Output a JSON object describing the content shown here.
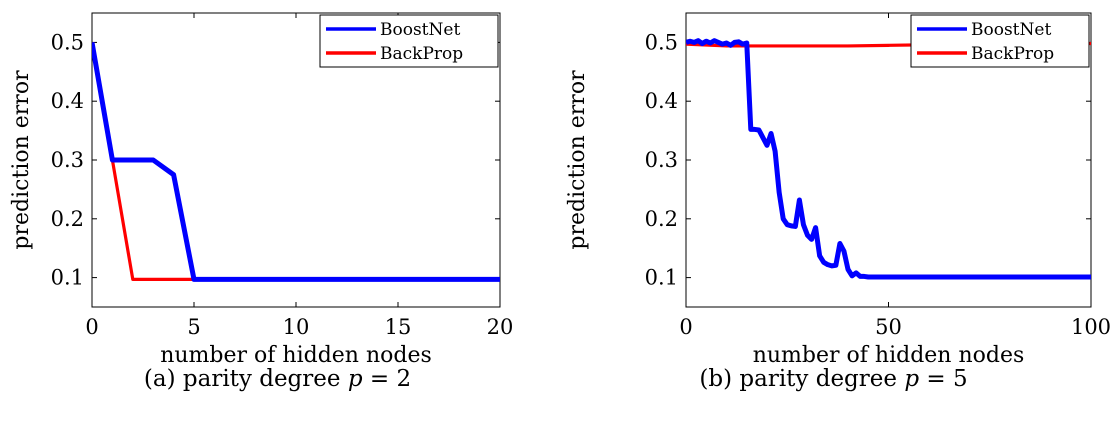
{
  "chart_data": [
    {
      "type": "line",
      "xlabel": "number of hidden nodes",
      "ylabel": "prediction error",
      "xlim": [
        0,
        20
      ],
      "ylim": [
        0.05,
        0.55
      ],
      "xticks": [
        0,
        5,
        10,
        15,
        20
      ],
      "yticks": [
        0.1,
        0.2,
        0.3,
        0.4,
        0.5
      ],
      "grid": false,
      "legend_position": "top-right",
      "series": [
        {
          "name": "BoostNet",
          "color": "#0000ff",
          "x": [
            0,
            1,
            2,
            3,
            4,
            5,
            6,
            7,
            8,
            9,
            10,
            11,
            12,
            13,
            14,
            15,
            16,
            17,
            18,
            19,
            20
          ],
          "y": [
            0.5,
            0.3,
            0.3,
            0.3,
            0.275,
            0.097,
            0.097,
            0.097,
            0.097,
            0.097,
            0.097,
            0.097,
            0.097,
            0.097,
            0.097,
            0.097,
            0.097,
            0.097,
            0.097,
            0.097,
            0.097
          ]
        },
        {
          "name": "BackProp",
          "color": "#ff0000",
          "x": [
            0,
            1,
            2,
            3,
            4,
            5,
            6,
            7,
            8,
            9,
            10,
            11,
            12,
            13,
            14,
            15,
            16,
            17,
            18,
            19,
            20
          ],
          "y": [
            0.5,
            0.3,
            0.097,
            0.097,
            0.097,
            0.097,
            0.097,
            0.097,
            0.097,
            0.097,
            0.097,
            0.097,
            0.097,
            0.097,
            0.097,
            0.097,
            0.097,
            0.097,
            0.097,
            0.097,
            0.097
          ]
        }
      ]
    },
    {
      "type": "line",
      "xlabel": "number of hidden nodes",
      "ylabel": "prediction error",
      "xlim": [
        0,
        100
      ],
      "ylim": [
        0.05,
        0.55
      ],
      "xticks": [
        0,
        50,
        100
      ],
      "yticks": [
        0.1,
        0.2,
        0.3,
        0.4,
        0.5
      ],
      "grid": false,
      "legend_position": "top-right",
      "series": [
        {
          "name": "BoostNet",
          "color": "#0000ff",
          "x": [
            0,
            1,
            2,
            3,
            4,
            5,
            6,
            7,
            8,
            9,
            10,
            11,
            12,
            13,
            14,
            15,
            16,
            17,
            18,
            19,
            20,
            21,
            22,
            23,
            24,
            25,
            26,
            27,
            28,
            29,
            30,
            31,
            32,
            33,
            34,
            35,
            36,
            37,
            38,
            39,
            40,
            41,
            42,
            43,
            44,
            45,
            46,
            47,
            48,
            49,
            50,
            100
          ],
          "y": [
            0.5,
            0.502,
            0.5,
            0.503,
            0.498,
            0.502,
            0.499,
            0.503,
            0.5,
            0.497,
            0.499,
            0.495,
            0.5,
            0.501,
            0.497,
            0.499,
            0.352,
            0.352,
            0.351,
            0.338,
            0.325,
            0.345,
            0.315,
            0.245,
            0.2,
            0.19,
            0.188,
            0.187,
            0.232,
            0.19,
            0.172,
            0.165,
            0.185,
            0.137,
            0.126,
            0.122,
            0.12,
            0.121,
            0.158,
            0.145,
            0.114,
            0.103,
            0.108,
            0.102,
            0.102,
            0.101,
            0.101,
            0.101,
            0.101,
            0.101,
            0.101,
            0.101
          ]
        },
        {
          "name": "BackProp",
          "color": "#ff0000",
          "x": [
            0,
            10,
            20,
            30,
            40,
            50,
            60,
            70,
            80,
            90,
            100
          ],
          "y": [
            0.497,
            0.494,
            0.494,
            0.494,
            0.494,
            0.495,
            0.496,
            0.497,
            0.497,
            0.498,
            0.498
          ]
        }
      ]
    }
  ],
  "captions": [
    {
      "prefix": "(a) parity degree ",
      "math": "p",
      "suffix": " = 2"
    },
    {
      "prefix": "(b) parity degree ",
      "math": "p",
      "suffix": " = 5"
    }
  ]
}
